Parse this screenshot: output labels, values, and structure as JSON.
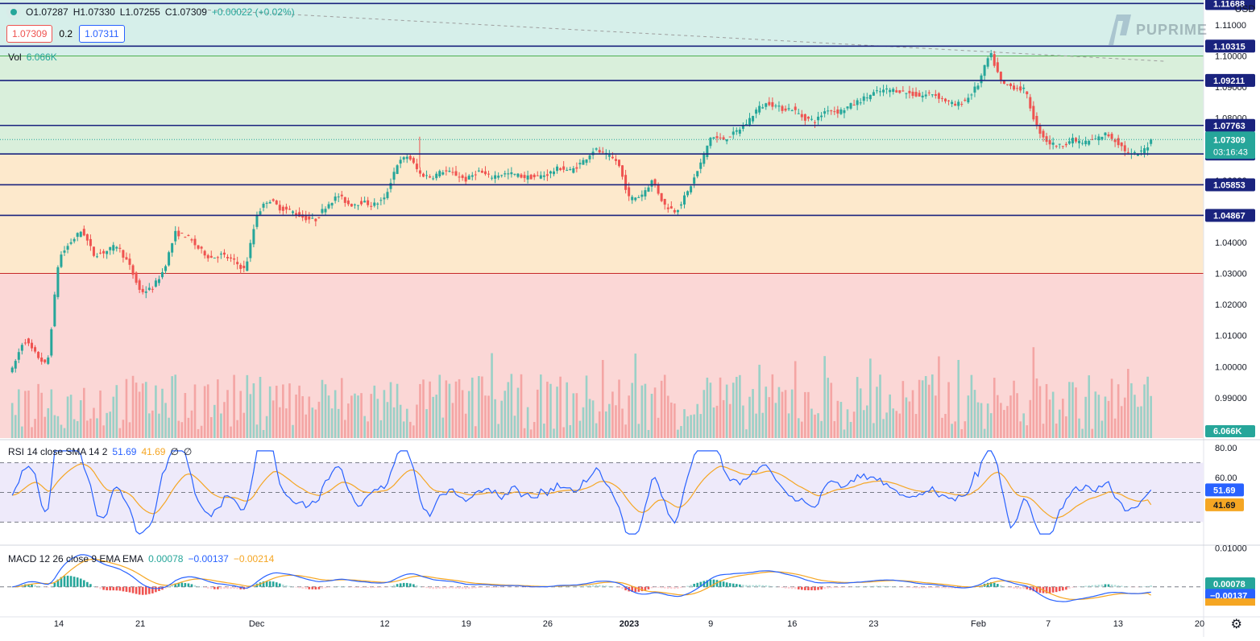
{
  "header": {
    "open": "O1.07287",
    "high": "H1.07330",
    "low": "L1.07255",
    "close": "C1.07309",
    "change": "+0.00022 (+0.02%)",
    "sell_price": "1.07309",
    "spread": "0.2",
    "buy_price": "1.07311",
    "vol_label": "Vol",
    "vol_value": "6.066K",
    "currency": "USD",
    "brand": "PUPRIME"
  },
  "colors": {
    "up": "#26a69a",
    "down": "#ef5350",
    "level_line": "#1a237e",
    "zone_teal": "#d6efea",
    "zone_green": "#d9efdb",
    "zone_orange": "#fde9cc",
    "zone_red": "#fbd7d6",
    "rsi_line": "#2962ff",
    "rsi_ma": "#f5a623"
  },
  "chart_data": [
    {
      "type": "candlestick",
      "symbol_pair_axis": "USD",
      "ylim": [
        0.977,
        1.118
      ],
      "y_ticks": [
        "1.11000",
        "1.10000",
        "1.09000",
        "1.08000",
        "1.06000",
        "1.04000",
        "1.03000",
        "1.02000",
        "1.01000",
        "1.00000",
        "0.99000",
        "0.98000"
      ],
      "x_ticks": [
        "14",
        "21",
        "Dec",
        "12",
        "19",
        "26",
        "2023",
        "9",
        "16",
        "23",
        "Feb",
        "7",
        "13",
        "20"
      ],
      "x_tick_dates": [
        "2022-11-14",
        "2022-11-21",
        "2022-12-01",
        "2022-12-12",
        "2022-12-19",
        "2022-12-26",
        "2023-01-02",
        "2023-01-09",
        "2023-01-16",
        "2023-01-23",
        "2023-02-01",
        "2023-02-07",
        "2023-02-13",
        "2023-02-20"
      ],
      "key_path": [
        [
          "2022-11-10",
          0.999
        ],
        [
          "2022-11-11",
          1.009
        ],
        [
          "2022-11-12",
          1.004
        ],
        [
          "2022-11-13",
          1.0
        ],
        [
          "2022-11-14",
          1.035
        ],
        [
          "2022-11-15",
          1.04
        ],
        [
          "2022-11-16",
          1.044
        ],
        [
          "2022-11-17",
          1.036
        ],
        [
          "2022-11-18",
          1.037
        ],
        [
          "2022-11-19",
          1.039
        ],
        [
          "2022-11-20",
          1.033
        ],
        [
          "2022-11-21",
          1.024
        ],
        [
          "2022-11-22",
          1.025
        ],
        [
          "2022-11-23",
          1.031
        ],
        [
          "2022-11-24",
          1.043
        ],
        [
          "2022-11-25",
          1.042
        ],
        [
          "2022-11-26",
          1.038
        ],
        [
          "2022-11-27",
          1.035
        ],
        [
          "2022-11-28",
          1.036
        ],
        [
          "2022-11-29",
          1.034
        ],
        [
          "2022-11-30",
          1.031
        ],
        [
          "2022-12-01",
          1.049
        ],
        [
          "2022-12-02",
          1.054
        ],
        [
          "2022-12-03",
          1.051
        ],
        [
          "2022-12-04",
          1.05
        ],
        [
          "2022-12-05",
          1.048
        ],
        [
          "2022-12-06",
          1.047
        ],
        [
          "2022-12-07",
          1.052
        ],
        [
          "2022-12-08",
          1.055
        ],
        [
          "2022-12-09",
          1.052
        ],
        [
          "2022-12-10",
          1.053
        ],
        [
          "2022-12-11",
          1.052
        ],
        [
          "2022-12-12",
          1.054
        ],
        [
          "2022-12-13",
          1.065
        ],
        [
          "2022-12-14",
          1.068
        ],
        [
          "2022-12-15",
          1.062
        ],
        [
          "2022-12-16",
          1.061
        ],
        [
          "2022-12-17",
          1.063
        ],
        [
          "2022-12-18",
          1.062
        ],
        [
          "2022-12-19",
          1.06
        ],
        [
          "2022-12-20",
          1.063
        ],
        [
          "2022-12-21",
          1.061
        ],
        [
          "2022-12-22",
          1.062
        ],
        [
          "2022-12-23",
          1.062
        ],
        [
          "2022-12-24",
          1.061
        ],
        [
          "2022-12-25",
          1.061
        ],
        [
          "2022-12-26",
          1.062
        ],
        [
          "2022-12-27",
          1.064
        ],
        [
          "2022-12-28",
          1.063
        ],
        [
          "2022-12-29",
          1.066
        ],
        [
          "2022-12-30",
          1.07
        ],
        [
          "2022-12-31",
          1.068
        ],
        [
          "2023-01-01",
          1.066
        ],
        [
          "2023-01-02",
          1.054
        ],
        [
          "2023-01-03",
          1.055
        ],
        [
          "2023-01-04",
          1.06
        ],
        [
          "2023-01-05",
          1.052
        ],
        [
          "2023-01-06",
          1.05
        ],
        [
          "2023-01-07",
          1.056
        ],
        [
          "2023-01-08",
          1.064
        ],
        [
          "2023-01-09",
          1.074
        ],
        [
          "2023-01-10",
          1.073
        ],
        [
          "2023-01-11",
          1.075
        ],
        [
          "2023-01-12",
          1.078
        ],
        [
          "2023-01-13",
          1.083
        ],
        [
          "2023-01-14",
          1.085
        ],
        [
          "2023-01-15",
          1.083
        ],
        [
          "2023-01-16",
          1.083
        ],
        [
          "2023-01-17",
          1.08
        ],
        [
          "2023-01-18",
          1.079
        ],
        [
          "2023-01-19",
          1.083
        ],
        [
          "2023-01-20",
          1.082
        ],
        [
          "2023-01-21",
          1.084
        ],
        [
          "2023-01-22",
          1.086
        ],
        [
          "2023-01-23",
          1.088
        ],
        [
          "2023-01-24",
          1.089
        ],
        [
          "2023-01-25",
          1.089
        ],
        [
          "2023-01-26",
          1.088
        ],
        [
          "2023-01-27",
          1.087
        ],
        [
          "2023-01-28",
          1.088
        ],
        [
          "2023-01-29",
          1.086
        ],
        [
          "2023-01-30",
          1.084
        ],
        [
          "2023-01-31",
          1.086
        ],
        [
          "2023-02-01",
          1.091
        ],
        [
          "2023-02-02",
          1.101
        ],
        [
          "2023-02-03",
          1.091
        ],
        [
          "2023-02-04",
          1.09
        ],
        [
          "2023-02-05",
          1.089
        ],
        [
          "2023-02-06",
          1.077
        ],
        [
          "2023-02-07",
          1.072
        ],
        [
          "2023-02-08",
          1.071
        ],
        [
          "2023-02-09",
          1.073
        ],
        [
          "2023-02-10",
          1.072
        ],
        [
          "2023-02-11",
          1.073
        ],
        [
          "2023-02-12",
          1.075
        ],
        [
          "2023-02-13",
          1.072
        ],
        [
          "2023-02-14",
          1.068
        ],
        [
          "2023-02-15",
          1.069
        ],
        [
          "2023-02-16",
          1.073
        ]
      ],
      "highlight_wick": [
        "2022-12-15",
        1.074
      ],
      "horizontal_levels": [
        {
          "label": "1.11688",
          "value": 1.11688
        },
        {
          "label": "1.10315",
          "value": 1.10315
        },
        {
          "label": "1.09211",
          "value": 1.09211
        },
        {
          "label": "1.07763",
          "value": 1.07763
        },
        {
          "label": "1.06844",
          "value": 1.06844
        },
        {
          "label": "1.05853",
          "value": 1.05853
        },
        {
          "label": "1.04867",
          "value": 1.04867
        }
      ],
      "zones": [
        {
          "from": 1.10315,
          "to": 1.118,
          "color": "zone_teal"
        },
        {
          "from": 1.1,
          "to": 1.10315,
          "color": "zone_teal"
        },
        {
          "from": 1.06844,
          "to": 1.1,
          "color": "zone_green"
        },
        {
          "from": 1.03,
          "to": 1.06844,
          "color": "zone_orange"
        },
        {
          "from": 0.977,
          "to": 1.03,
          "color": "zone_red"
        }
      ],
      "last_price": {
        "value": 1.07309,
        "label": "1.07309",
        "countdown": "03:16:43"
      },
      "volume_label": "6.066K"
    },
    {
      "type": "line",
      "title": "RSI 14 close SMA 14 2",
      "values_shown": [
        "51.69",
        "41.69",
        "∅",
        "∅"
      ],
      "ylim": [
        15,
        85
      ],
      "y_ticks": [
        "80.00",
        "60.00"
      ],
      "bands": [
        70,
        50,
        30
      ],
      "last": {
        "rsi": 51.69,
        "sma": 41.69,
        "rsi_label": "51.69",
        "sma_label": "41.69"
      }
    },
    {
      "type": "line",
      "title": "MACD 12 26 close 9 EMA EMA",
      "values_shown": [
        "0.00078",
        "−0.00137",
        "−0.00214"
      ],
      "ylim": [
        -0.0075,
        0.0105
      ],
      "y_ticks": [
        "0.01000"
      ],
      "last": {
        "hist": 0.00078,
        "macd": -0.00137,
        "signal": -0.00214,
        "hist_label": "0.00078",
        "macd_label": "−0.00137",
        "signal_label": "−0.00214"
      }
    }
  ]
}
